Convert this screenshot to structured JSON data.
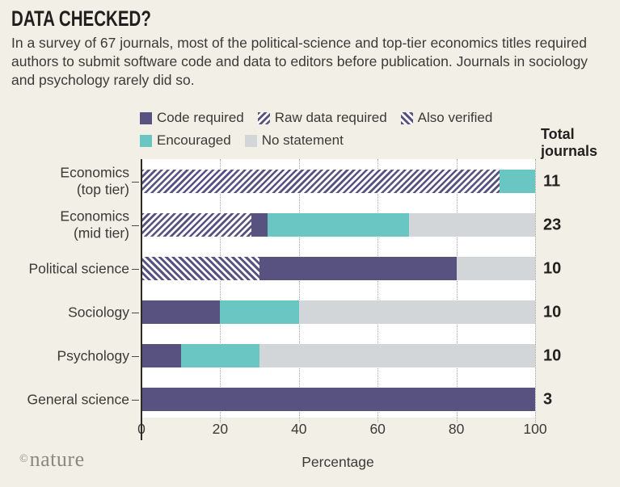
{
  "header": {
    "title": "DATA CHECKED?",
    "subtitle": "In a survey of 67 journals, most of the political-science and top-tier economics titles required authors to submit software code and data to editors before publication. Journals in sociology and psychology rarely did so."
  },
  "colors": {
    "background": "#f1efe6",
    "purple": "#57527f",
    "teal": "#69c6c3",
    "gray": "#d3d6d8",
    "plot_background": "#ffffff",
    "text": "#3b3a37"
  },
  "legend": {
    "rows": [
      [
        {
          "label": "Code required",
          "swatch": "code"
        },
        {
          "label": "Raw data required",
          "swatch": "raw"
        },
        {
          "label": "Also verified",
          "swatch": "verified"
        }
      ],
      [
        {
          "label": "Encouraged",
          "swatch": "enc"
        },
        {
          "label": "No statement",
          "swatch": "none"
        }
      ]
    ]
  },
  "total_header": "Total journals",
  "chart_data": {
    "type": "bar",
    "variant": "horizontal_stacked",
    "title": "DATA CHECKED?",
    "xlabel": "Percentage",
    "xlim": [
      0,
      100
    ],
    "x_ticks": [
      0,
      20,
      40,
      60,
      80,
      100
    ],
    "grid": "dotted-vertical",
    "legend_position": "top",
    "categories": [
      "Economics (top tier)",
      "Economics (mid tier)",
      "Political science",
      "Sociology",
      "Psychology",
      "General science"
    ],
    "totals": [
      11,
      23,
      10,
      10,
      10,
      3
    ],
    "series": [
      {
        "name": "Code required",
        "values": [
          0,
          4,
          50,
          20,
          10,
          100
        ]
      },
      {
        "name": "Raw data required",
        "values": [
          91,
          28,
          0,
          0,
          0,
          0
        ]
      },
      {
        "name": "Also verified",
        "values": [
          0,
          0,
          30,
          0,
          0,
          0
        ]
      },
      {
        "name": "Encouraged",
        "values": [
          9,
          36,
          0,
          20,
          20,
          0
        ]
      },
      {
        "name": "No statement",
        "values": [
          0,
          32,
          20,
          60,
          70,
          0
        ]
      }
    ],
    "bars": [
      {
        "label_lines": [
          "Economics",
          "(top tier)"
        ],
        "total": "11",
        "segments": [
          {
            "key": "raw",
            "value": 91
          },
          {
            "key": "enc",
            "value": 9
          }
        ]
      },
      {
        "label_lines": [
          "Economics",
          "(mid tier)"
        ],
        "total": "23",
        "segments": [
          {
            "key": "raw",
            "value": 28
          },
          {
            "key": "code",
            "value": 4
          },
          {
            "key": "enc",
            "value": 36
          },
          {
            "key": "none",
            "value": 32
          }
        ]
      },
      {
        "label_lines": [
          "Political science"
        ],
        "total": "10",
        "segments": [
          {
            "key": "verified",
            "value": 30
          },
          {
            "key": "code",
            "value": 50
          },
          {
            "key": "none",
            "value": 20
          }
        ]
      },
      {
        "label_lines": [
          "Sociology"
        ],
        "total": "10",
        "segments": [
          {
            "key": "code",
            "value": 20
          },
          {
            "key": "enc",
            "value": 20
          },
          {
            "key": "none",
            "value": 60
          }
        ]
      },
      {
        "label_lines": [
          "Psychology"
        ],
        "total": "10",
        "segments": [
          {
            "key": "code",
            "value": 10
          },
          {
            "key": "enc",
            "value": 20
          },
          {
            "key": "none",
            "value": 70
          }
        ]
      },
      {
        "label_lines": [
          "General science"
        ],
        "total": "3",
        "segments": [
          {
            "key": "code",
            "value": 100
          }
        ]
      }
    ]
  },
  "footer": {
    "copyright": "©",
    "brand": "nature"
  }
}
